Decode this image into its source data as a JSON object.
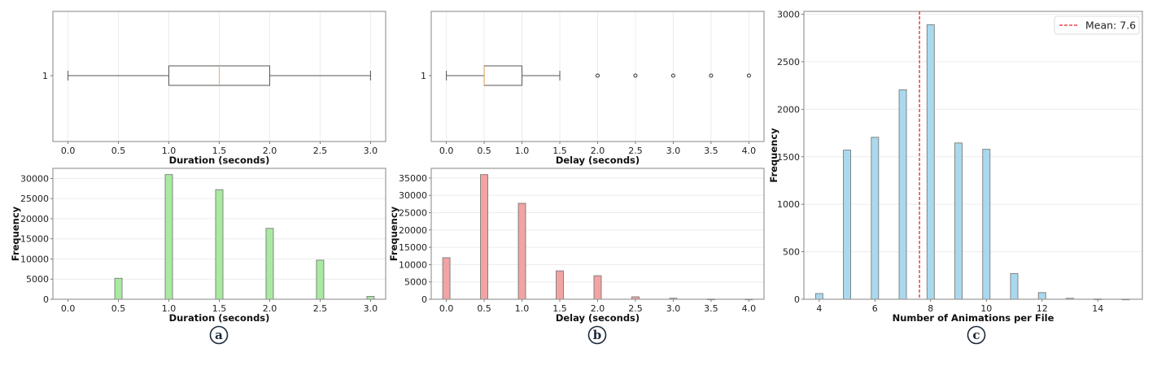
{
  "figure": {
    "panels": [
      {
        "id": "a",
        "label": "a"
      },
      {
        "id": "b",
        "label": "b"
      },
      {
        "id": "c",
        "label": "c"
      }
    ]
  },
  "colors": {
    "duration_bar": "#a8eaa0",
    "delay_bar": "#f2a3a3",
    "animations_bar": "#a9d9ee",
    "mean_line": "#e8262b",
    "median_line": "#f0b060",
    "axis": "#999999",
    "grid": "#ececec"
  },
  "chart_data": [
    {
      "id": "a-box",
      "type": "boxplot",
      "orientation": "horizontal",
      "xlabel": "Duration (seconds)",
      "ylabel": "",
      "yticks": [
        "1"
      ],
      "xticks": [
        "0.0",
        "0.5",
        "1.0",
        "1.5",
        "2.0",
        "2.5",
        "3.0"
      ],
      "xlim": [
        -0.15,
        3.15
      ],
      "stats": {
        "whisker_low": 0.0,
        "q1": 1.0,
        "median": 1.5,
        "q3": 2.0,
        "whisker_high": 3.0
      },
      "outliers": [],
      "grid": "x"
    },
    {
      "id": "a-hist",
      "type": "bar",
      "xlabel": "Duration (seconds)",
      "ylabel": "Frequency",
      "categories": [
        0.0,
        0.5,
        1.0,
        1.5,
        2.0,
        2.5,
        3.0
      ],
      "values": [
        0,
        5200,
        30950,
        27200,
        17600,
        9700,
        700
      ],
      "xticks": [
        "0.0",
        "0.5",
        "1.0",
        "1.5",
        "2.0",
        "2.5",
        "3.0"
      ],
      "yticks": [
        "0",
        "5000",
        "10000",
        "15000",
        "20000",
        "25000",
        "30000"
      ],
      "xlim": [
        -0.15,
        3.15
      ],
      "ylim": [
        0,
        32500
      ],
      "grid": "y"
    },
    {
      "id": "b-box",
      "type": "boxplot",
      "orientation": "horizontal",
      "xlabel": "Delay (seconds)",
      "ylabel": "",
      "yticks": [
        "1"
      ],
      "xticks": [
        "0.0",
        "0.5",
        "1.0",
        "1.5",
        "2.0",
        "2.5",
        "3.0",
        "3.5",
        "4.0"
      ],
      "xlim": [
        -0.2,
        4.2
      ],
      "stats": {
        "whisker_low": 0.0,
        "q1": 0.5,
        "median": 0.5,
        "q3": 1.0,
        "whisker_high": 1.5
      },
      "outliers": [
        2.0,
        2.5,
        3.0,
        3.5,
        4.0
      ],
      "grid": "x"
    },
    {
      "id": "b-hist",
      "type": "bar",
      "xlabel": "Delay (seconds)",
      "ylabel": "Frequency",
      "categories": [
        0.0,
        0.5,
        1.0,
        1.5,
        2.0,
        2.5,
        3.0,
        3.5,
        4.0
      ],
      "values": [
        12000,
        36000,
        27700,
        8200,
        6800,
        700,
        300,
        50,
        30
      ],
      "xticks": [
        "0.0",
        "0.5",
        "1.0",
        "1.5",
        "2.0",
        "2.5",
        "3.0",
        "3.5",
        "4.0"
      ],
      "yticks": [
        "0",
        "5000",
        "10000",
        "15000",
        "20000",
        "25000",
        "30000",
        "35000"
      ],
      "xlim": [
        -0.2,
        4.2
      ],
      "ylim": [
        0,
        37800
      ],
      "grid": "y"
    },
    {
      "id": "c-hist",
      "type": "bar",
      "xlabel": "Number of Animations per File",
      "ylabel": "Frequency",
      "categories": [
        4,
        5,
        6,
        7,
        8,
        9,
        10,
        11,
        12,
        13,
        14,
        15
      ],
      "values": [
        60,
        1570,
        1705,
        2205,
        2890,
        1645,
        1578,
        270,
        70,
        10,
        3,
        1
      ],
      "xticks": [
        "4",
        "6",
        "8",
        "10",
        "12",
        "14"
      ],
      "yticks": [
        "0",
        "500",
        "1000",
        "1500",
        "2000",
        "2500",
        "3000"
      ],
      "xlim": [
        3.45,
        15.6
      ],
      "ylim": [
        0,
        3030
      ],
      "mean_line": {
        "x": 7.6,
        "label": "Mean: 7.6"
      },
      "legend": {
        "position": "upper right",
        "entries": [
          "Mean: 7.6"
        ]
      },
      "grid": "y"
    }
  ]
}
